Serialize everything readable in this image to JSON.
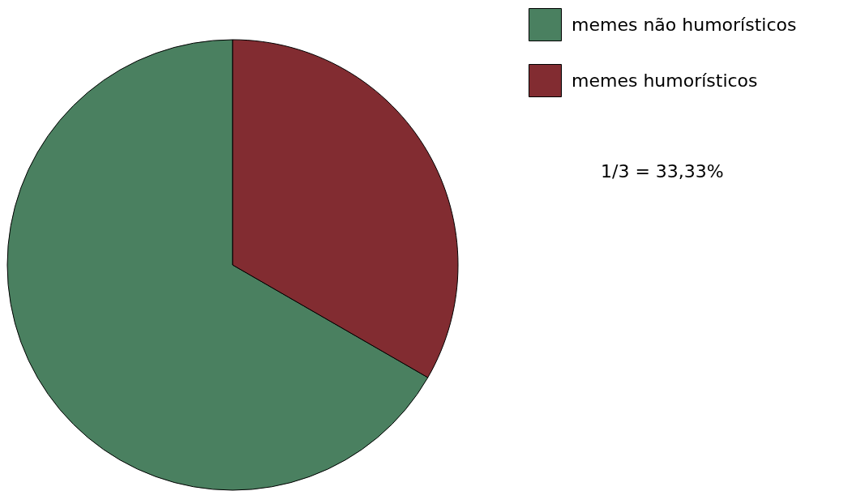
{
  "chart_data": {
    "type": "pie",
    "categories": [
      "memes não humorísticos",
      "memes humorísticos"
    ],
    "values": [
      66.67,
      33.33
    ],
    "colors": [
      "#4a8060",
      "#822c31"
    ],
    "legend": "top right",
    "annotations": [
      "1/3 = 33,33%"
    ]
  }
}
